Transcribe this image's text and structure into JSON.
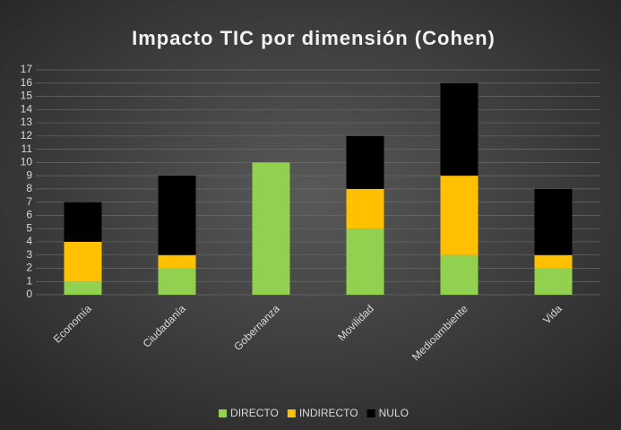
{
  "chart_data": {
    "type": "stacked_bar",
    "title": "Impacto TIC por dimensión (Cohen)",
    "categories": [
      "Economía",
      "Ciudadanía",
      "Gobernanza",
      "Movilidad",
      "Medioambiente",
      "Vida"
    ],
    "series": [
      {
        "name": "DIRECTO",
        "color": "#92d050",
        "values": [
          1,
          2,
          10,
          5,
          3,
          2
        ]
      },
      {
        "name": "INDIRECTO",
        "color": "#ffc000",
        "values": [
          3,
          1,
          0,
          3,
          6,
          1
        ]
      },
      {
        "name": "NULO",
        "color": "#000000",
        "values": [
          3,
          6,
          0,
          4,
          7,
          5
        ]
      }
    ],
    "ylim": [
      0,
      17
    ],
    "yticks": [
      0,
      1,
      2,
      3,
      4,
      5,
      6,
      7,
      8,
      9,
      10,
      11,
      12,
      13,
      14,
      15,
      16,
      17
    ],
    "grid": true,
    "legend": "bottom"
  }
}
